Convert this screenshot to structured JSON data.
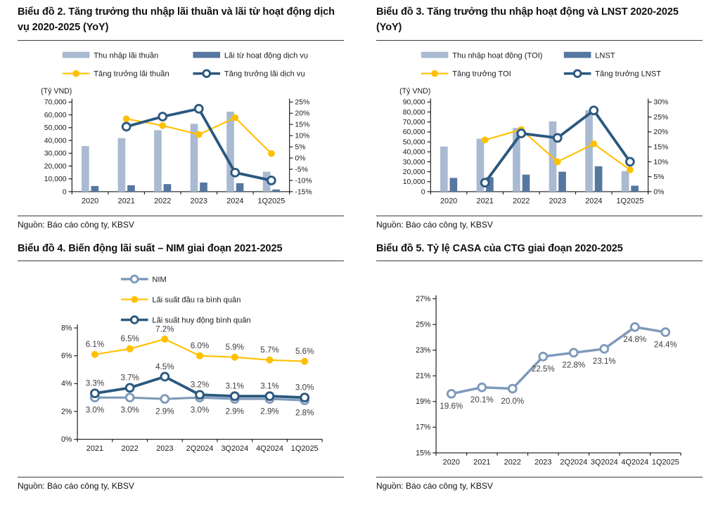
{
  "page": {
    "background": "#ffffff"
  },
  "colors": {
    "light_bar": "#A9BAD2",
    "dark_bar": "#56779F",
    "yellow": "#FFC000",
    "navy": "#2B587F",
    "steel": "#7E99BA",
    "axis": "#1a1a1a",
    "data_label": "#3d3d3d"
  },
  "panels": [
    {
      "title": "Biểu đồ 2. Tăng trưởng thu nhập lãi thuần và lãi từ hoạt động dịch vụ 2020-2025 (YoY)",
      "source": "Nguồn: Báo cáo công ty, KBSV"
    },
    {
      "title": "Biểu đồ 3. Tăng trưởng thu nhập hoạt động và LNST 2020-2025 (YoY)",
      "source": "Nguồn: Báo cáo công ty, KBSV"
    },
    {
      "title": "Biểu đồ 4. Biến động lãi suất – NIM giai đoạn 2021-2025",
      "source": "Nguồn: Báo cáo công ty, KBSV"
    },
    {
      "title": "Biểu đồ 5. Tỷ lệ CASA của CTG giai đoạn 2020-2025",
      "source": "Nguồn: Báo cáo công ty, KBSV"
    }
  ],
  "chart_data": [
    {
      "type": "bar",
      "subtype": "combo_bar_line",
      "title": "Biểu đồ 2. Tăng trưởng thu nhập lãi thuần và lãi từ hoạt động dịch vụ 2020-2025 (YoY)",
      "unit": "(Tỷ VND)",
      "categories": [
        "2020",
        "2021",
        "2022",
        "2023",
        "2024",
        "1Q2025"
      ],
      "bar_series": [
        {
          "name": "Thu nhập lãi thuần",
          "color_key": "light_bar",
          "values": [
            35600,
            41800,
            48000,
            53000,
            62500,
            15600
          ]
        },
        {
          "name": "Lãi từ hoạt động dịch vụ",
          "color_key": "dark_bar",
          "values": [
            4400,
            5000,
            5900,
            7100,
            6600,
            1700
          ]
        }
      ],
      "line_series": [
        {
          "name": "Tăng trưởng lãi thuần",
          "color_key": "yellow",
          "marker": "filled",
          "values": [
            null,
            17.5,
            14.5,
            10.5,
            18.0,
            2.0
          ]
        },
        {
          "name": "Tăng trưởng lãi dịch vụ",
          "color_key": "navy",
          "marker": "open",
          "values": [
            null,
            14.0,
            18.5,
            22.0,
            -6.5,
            -10.0
          ]
        }
      ],
      "left_axis": {
        "min": 0,
        "max": 70000,
        "step": 10000
      },
      "right_axis": {
        "min": -15,
        "max": 25,
        "step": 5,
        "suffix": "%"
      },
      "legend_position": "top",
      "grid": false
    },
    {
      "type": "bar",
      "subtype": "combo_bar_line",
      "title": "Biểu đồ 3. Tăng trưởng thu nhập hoạt động và LNST 2020-2025 (YoY)",
      "unit": "(Tỷ VND)",
      "categories": [
        "2020",
        "2021",
        "2022",
        "2023",
        "2024",
        "1Q2025"
      ],
      "bar_series": [
        {
          "name": "Thu nhập hoạt động (TOI)",
          "color_key": "light_bar",
          "values": [
            45300,
            53200,
            64000,
            70600,
            81900,
            20600
          ]
        },
        {
          "name": "LNST",
          "color_key": "dark_bar",
          "values": [
            13800,
            14500,
            17100,
            20000,
            25500,
            6000
          ]
        }
      ],
      "line_series": [
        {
          "name": "Tăng trưởng TOI",
          "color_key": "yellow",
          "marker": "filled",
          "values": [
            null,
            17.3,
            20.8,
            10.0,
            16.0,
            7.3
          ]
        },
        {
          "name": "Tăng trưởng LNST",
          "color_key": "navy",
          "marker": "open",
          "values": [
            null,
            3.0,
            19.5,
            18.0,
            27.2,
            10.0
          ]
        }
      ],
      "left_axis": {
        "min": 0,
        "max": 90000,
        "step": 10000
      },
      "right_axis": {
        "min": 0,
        "max": 30,
        "step": 5,
        "suffix": "%"
      },
      "legend_position": "top",
      "grid": false
    },
    {
      "type": "line",
      "subtype": "multi_line_labeled",
      "title": "Biểu đồ 4. Biến động lãi suất – NIM giai đoạn 2021-2025",
      "categories": [
        "2021",
        "2022",
        "2023",
        "2Q2024",
        "3Q2024",
        "4Q2024",
        "1Q2025"
      ],
      "series": [
        {
          "name": "NIM",
          "color_key": "steel",
          "marker": "open",
          "width": 3.2,
          "values": [
            3.0,
            3.0,
            2.9,
            3.0,
            2.9,
            2.9,
            2.8
          ],
          "label_pos": "below"
        },
        {
          "name": "Lãi suất đầu ra bình quân",
          "color_key": "yellow",
          "marker": "filled",
          "width": 2.2,
          "values": [
            6.1,
            6.5,
            7.2,
            6.0,
            5.9,
            5.7,
            5.6
          ],
          "label_pos": "above"
        },
        {
          "name": "Lãi suất huy động bình quân",
          "color_key": "navy",
          "marker": "open",
          "width": 4.0,
          "values": [
            3.3,
            3.7,
            4.5,
            3.2,
            3.1,
            3.1,
            3.0
          ],
          "label_pos": "above"
        }
      ],
      "y_axis": {
        "min": 0,
        "max": 8,
        "step": 2,
        "suffix": "%"
      },
      "data_labels": true,
      "legend_position": "top-vertical",
      "grid": false
    },
    {
      "type": "line",
      "subtype": "single_line_labeled",
      "title": "Biểu đồ 5. Tỷ lệ CASA của CTG giai đoạn 2020-2025",
      "categories": [
        "2020",
        "2021",
        "2022",
        "2023",
        "2Q2024",
        "3Q2024",
        "4Q2024",
        "1Q2025"
      ],
      "series": [
        {
          "name": "CASA",
          "color_key": "steel",
          "marker": "open",
          "width": 3.6,
          "values": [
            19.6,
            20.1,
            20.0,
            22.5,
            22.8,
            23.1,
            24.8,
            24.4
          ],
          "label_pos": "below"
        }
      ],
      "y_axis": {
        "min": 15,
        "max": 27,
        "step": 2,
        "suffix": "%"
      },
      "data_labels": true,
      "legend_position": "none",
      "grid": false
    }
  ]
}
